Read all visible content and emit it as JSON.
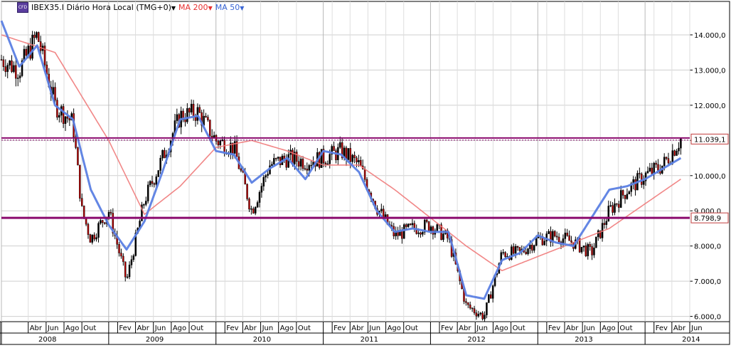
{
  "chart_data": {
    "type": "line",
    "title": "IBEX35.I Diário Hora Local (TMG+0)",
    "series": [
      {
        "name": "IBEX35.I",
        "style": "candlestick",
        "color": "#000000",
        "down_color": "#c00000",
        "x": [
          "2008-01",
          "2008-03",
          "2008-05",
          "2008-07",
          "2008-09",
          "2008-10",
          "2008-11",
          "2009-01",
          "2009-03",
          "2009-05",
          "2009-07",
          "2009-09",
          "2009-11",
          "2010-01",
          "2010-03",
          "2010-05",
          "2010-07",
          "2010-09",
          "2010-11",
          "2011-01",
          "2011-03",
          "2011-05",
          "2011-07",
          "2011-09",
          "2011-11",
          "2012-01",
          "2012-03",
          "2012-05",
          "2012-07",
          "2012-09",
          "2012-11",
          "2013-01",
          "2013-03",
          "2013-05",
          "2013-07",
          "2013-09",
          "2013-11",
          "2014-01",
          "2014-03",
          "2014-05"
        ],
        "y": [
          13300,
          13000,
          14000,
          12000,
          11500,
          9000,
          8200,
          9000,
          7000,
          9300,
          10500,
          11700,
          11800,
          11000,
          10800,
          9000,
          10300,
          10500,
          10400,
          10500,
          10700,
          10300,
          9100,
          8300,
          8500,
          8600,
          8200,
          6300,
          6000,
          7800,
          7800,
          8200,
          8300,
          8100,
          7800,
          9000,
          9600,
          10000,
          10300,
          11039.1
        ]
      },
      {
        "name": "MA 200",
        "color": "#f07a7a",
        "x": [
          "2008-01",
          "2008-07",
          "2009-01",
          "2009-05",
          "2009-09",
          "2010-01",
          "2010-05",
          "2010-09",
          "2011-01",
          "2011-05",
          "2011-09",
          "2012-01",
          "2012-05",
          "2012-09",
          "2013-01",
          "2013-05",
          "2013-09",
          "2014-01",
          "2014-05"
        ],
        "y": [
          14000,
          13500,
          11000,
          8900,
          9700,
          10800,
          11000,
          10700,
          10300,
          10300,
          9600,
          8800,
          8000,
          7300,
          7700,
          8100,
          8500,
          9200,
          9900
        ]
      },
      {
        "name": "MA 50",
        "color": "#5b7fe3",
        "x": [
          "2008-01",
          "2008-03",
          "2008-05",
          "2008-07",
          "2008-09",
          "2008-11",
          "2009-01",
          "2009-03",
          "2009-05",
          "2009-07",
          "2009-09",
          "2009-11",
          "2010-01",
          "2010-03",
          "2010-05",
          "2010-07",
          "2010-09",
          "2010-11",
          "2011-01",
          "2011-03",
          "2011-05",
          "2011-07",
          "2011-09",
          "2011-11",
          "2012-01",
          "2012-03",
          "2012-05",
          "2012-07",
          "2012-09",
          "2012-11",
          "2013-01",
          "2013-03",
          "2013-05",
          "2013-07",
          "2013-09",
          "2013-11",
          "2014-01",
          "2014-03",
          "2014-05"
        ],
        "y": [
          14400,
          13100,
          13700,
          12000,
          11600,
          9600,
          8600,
          7900,
          8700,
          10100,
          11600,
          11700,
          10700,
          10600,
          9800,
          10200,
          10500,
          9900,
          10700,
          10600,
          10100,
          9000,
          8400,
          8500,
          8400,
          8400,
          6600,
          6500,
          7600,
          7800,
          8300,
          8100,
          8000,
          8800,
          9600,
          9700,
          9900,
          10200,
          10500
        ]
      }
    ],
    "horizontal_lines": [
      {
        "value": 11039.1,
        "label": "11.039,1",
        "color": "#8b0a6e",
        "style": "dotted-double"
      },
      {
        "value": 8798.9,
        "label": "8.798,9",
        "color": "#8b0a6e",
        "style": "solid"
      }
    ],
    "ylim": [
      5850,
      14950
    ],
    "y_ticks": [
      {
        "value": 6000,
        "label": "6.000,0"
      },
      {
        "value": 7000,
        "label": "7.000,0"
      },
      {
        "value": 8000,
        "label": "8.000,0"
      },
      {
        "value": 9000,
        "label": "9.000,0"
      },
      {
        "value": 10000,
        "label": "10.000,0"
      },
      {
        "value": 11000,
        "label": "11.000,0"
      },
      {
        "value": 12000,
        "label": "12.000,0"
      },
      {
        "value": 13000,
        "label": "13.000,0"
      },
      {
        "value": 14000,
        "label": "14.000,0"
      }
    ],
    "xlim": [
      "2008-01",
      "2014-06"
    ],
    "x_month_ticks": [
      {
        "x": "2008-04",
        "label": "Abr"
      },
      {
        "x": "2008-06",
        "label": "Jun"
      },
      {
        "x": "2008-08",
        "label": "Ago"
      },
      {
        "x": "2008-10",
        "label": "Out"
      },
      {
        "x": "2009-02",
        "label": "Fev"
      },
      {
        "x": "2009-04",
        "label": "Abr"
      },
      {
        "x": "2009-06",
        "label": "Jun"
      },
      {
        "x": "2009-08",
        "label": "Ago"
      },
      {
        "x": "2009-10",
        "label": "Out"
      },
      {
        "x": "2010-02",
        "label": "Fev"
      },
      {
        "x": "2010-04",
        "label": "Abr"
      },
      {
        "x": "2010-06",
        "label": "Jun"
      },
      {
        "x": "2010-08",
        "label": "Ago"
      },
      {
        "x": "2010-10",
        "label": "Out"
      },
      {
        "x": "2011-02",
        "label": "Fev"
      },
      {
        "x": "2011-04",
        "label": "Abr"
      },
      {
        "x": "2011-06",
        "label": "Jun"
      },
      {
        "x": "2011-08",
        "label": "Ago"
      },
      {
        "x": "2011-10",
        "label": "Out"
      },
      {
        "x": "2012-02",
        "label": "Fev"
      },
      {
        "x": "2012-04",
        "label": "Abr"
      },
      {
        "x": "2012-06",
        "label": "Jun"
      },
      {
        "x": "2012-08",
        "label": "Ago"
      },
      {
        "x": "2012-10",
        "label": "Out"
      },
      {
        "x": "2013-02",
        "label": "Fev"
      },
      {
        "x": "2013-04",
        "label": "Abr"
      },
      {
        "x": "2013-06",
        "label": "Jun"
      },
      {
        "x": "2013-08",
        "label": "Ago"
      },
      {
        "x": "2013-10",
        "label": "Out"
      },
      {
        "x": "2014-02",
        "label": "Fev"
      },
      {
        "x": "2014-04",
        "label": "Abr"
      },
      {
        "x": "2014-06",
        "label": "Jun"
      }
    ],
    "x_year_ticks": [
      {
        "x": "2008-01",
        "label": "2008"
      },
      {
        "x": "2009-01",
        "label": "2009"
      },
      {
        "x": "2010-01",
        "label": "2010"
      },
      {
        "x": "2011-01",
        "label": "2011"
      },
      {
        "x": "2012-01",
        "label": "2012"
      },
      {
        "x": "2013-01",
        "label": "2013"
      },
      {
        "x": "2014-01",
        "label": "2014"
      }
    ],
    "grid": true,
    "legend_position": "top-left"
  },
  "legend": {
    "symbol": "IBEX35.I Diário Hora Local (TMG+0)",
    "ma200": "MA 200",
    "ma50": "MA 50",
    "logo_text": "CFD",
    "caret": "▼"
  },
  "colors": {
    "ma200": "#e83030",
    "ma50": "#3a66d6",
    "grid": "#c8c8c8"
  }
}
